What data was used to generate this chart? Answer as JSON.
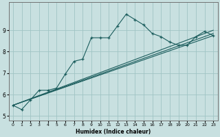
{
  "xlabel": "Humidex (Indice chaleur)",
  "ylabel": "",
  "bg_color": "#c8e0e0",
  "grid_color": "#a0c4c4",
  "line_color": "#1a5c5c",
  "xlim": [
    -0.5,
    23.5
  ],
  "ylim": [
    4.8,
    10.3
  ],
  "yticks": [
    5,
    6,
    7,
    8,
    9
  ],
  "xtick_labels": [
    "0",
    "1",
    "2",
    "3",
    "4",
    "5",
    "6",
    "7",
    "8",
    "9",
    "10",
    "11",
    "12",
    "13",
    "14",
    "15",
    "16",
    "17",
    "18",
    "19",
    "20",
    "21",
    "22",
    "23"
  ],
  "xticks": [
    0,
    1,
    2,
    3,
    4,
    5,
    6,
    7,
    8,
    9,
    10,
    11,
    12,
    13,
    14,
    15,
    16,
    17,
    18,
    19,
    20,
    21,
    22,
    23
  ],
  "main_line": {
    "x": [
      0,
      1,
      2,
      3,
      4,
      5,
      6,
      7,
      8,
      9,
      10,
      11,
      12,
      13,
      14,
      15,
      16,
      17,
      18,
      19,
      20,
      21,
      22,
      23
    ],
    "y": [
      5.5,
      5.3,
      5.75,
      6.2,
      6.2,
      6.3,
      6.95,
      7.55,
      7.65,
      8.65,
      8.65,
      8.65,
      9.2,
      9.75,
      9.5,
      9.25,
      8.85,
      8.7,
      8.45,
      8.3,
      8.3,
      8.7,
      8.95,
      8.75
    ]
  },
  "straight_lines": [
    {
      "x": [
        0,
        23
      ],
      "y": [
        5.5,
        8.75
      ]
    },
    {
      "x": [
        0,
        23
      ],
      "y": [
        5.5,
        8.85
      ]
    },
    {
      "x": [
        0,
        23
      ],
      "y": [
        5.5,
        9.0
      ]
    }
  ]
}
